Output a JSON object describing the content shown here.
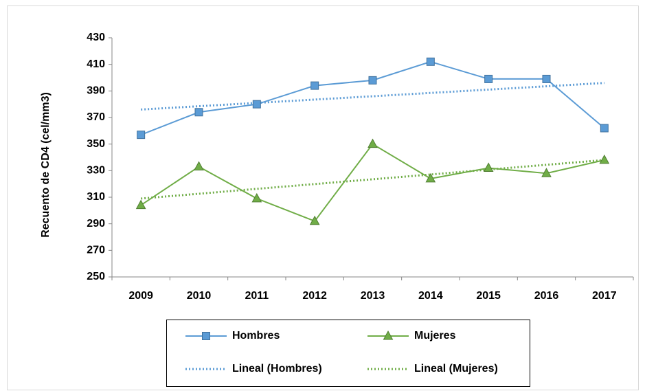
{
  "chart_data": {
    "type": "line",
    "y_label": "Recuento de CD4 (cel/mm3)",
    "categories": [
      "2009",
      "2010",
      "2011",
      "2012",
      "2013",
      "2014",
      "2015",
      "2016",
      "2017"
    ],
    "series": [
      {
        "name": "Hombres",
        "color": "#5b9bd5",
        "marker": "square",
        "style": "solid",
        "values": [
          357,
          374,
          380,
          394,
          398,
          412,
          399,
          399,
          362
        ]
      },
      {
        "name": "Mujeres",
        "color": "#70ad47",
        "marker": "triangle",
        "style": "solid",
        "values": [
          304,
          333,
          309,
          292,
          350,
          324,
          332,
          328,
          338
        ]
      },
      {
        "name": "Lineal (Hombres)",
        "color": "#5b9bd5",
        "marker": "none",
        "style": "dotted",
        "values": [
          376,
          378.5,
          381,
          383.5,
          386,
          388.5,
          391,
          393.5,
          396
        ]
      },
      {
        "name": "Lineal (Mujeres)",
        "color": "#70ad47",
        "marker": "none",
        "style": "dotted",
        "values": [
          309,
          312.6,
          316.3,
          319.9,
          323.5,
          327.1,
          330.8,
          334.4,
          338
        ]
      }
    ],
    "ylim": [
      250,
      430
    ],
    "yticks": [
      250,
      270,
      290,
      310,
      330,
      350,
      370,
      390,
      410,
      430
    ],
    "grid": false
  }
}
